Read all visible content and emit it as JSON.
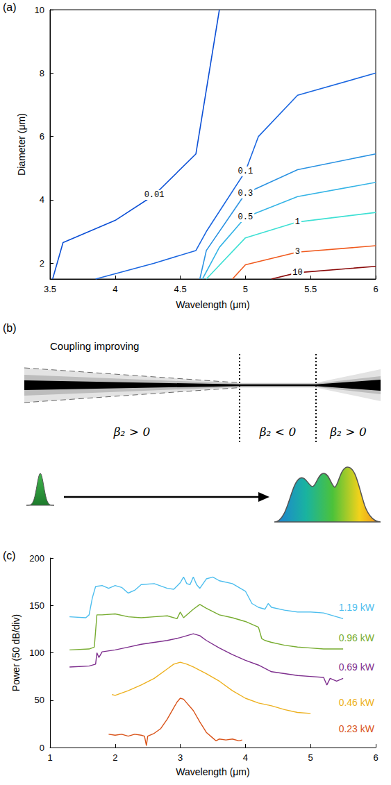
{
  "chart_data": [
    {
      "panel_label": "(a)",
      "type": "contour",
      "x_label": "Wavelength (μm)",
      "y_label": "Diameter (μm)",
      "xlim": [
        3.5,
        6
      ],
      "xticks": [
        3.5,
        4,
        4.5,
        5,
        5.5,
        6
      ],
      "ylim": [
        1.5,
        10
      ],
      "yticks": [
        2,
        4,
        6,
        8,
        10
      ],
      "grid": false,
      "series": [
        {
          "name": "0.01",
          "color": "#0b4fd6",
          "points": [
            [
              3.52,
              1.5
            ],
            [
              3.6,
              2.65
            ],
            [
              4.0,
              3.35
            ],
            [
              4.3,
              4.15
            ],
            [
              4.62,
              5.45
            ],
            [
              4.8,
              10
            ]
          ]
        },
        {
          "name": "0.1",
          "color": "#1a66e0",
          "points": [
            [
              3.85,
              1.5
            ],
            [
              4.3,
              2.0
            ],
            [
              4.62,
              2.4
            ],
            [
              4.7,
              3.0
            ],
            [
              5.0,
              4.9
            ],
            [
              5.1,
              6.0
            ],
            [
              5.4,
              7.3
            ],
            [
              6.0,
              8.0
            ]
          ]
        },
        {
          "name": "0.3",
          "color": "#2a92e2",
          "points": [
            [
              4.65,
              1.5
            ],
            [
              4.7,
              2.4
            ],
            [
              5.0,
              4.2
            ],
            [
              5.4,
              4.95
            ],
            [
              6.0,
              5.45
            ]
          ]
        },
        {
          "name": "0.5",
          "color": "#35b4e6",
          "points": [
            [
              4.67,
              1.5
            ],
            [
              4.8,
              2.5
            ],
            [
              5.0,
              3.45
            ],
            [
              5.4,
              4.1
            ],
            [
              6.0,
              4.55
            ]
          ]
        },
        {
          "name": "1",
          "color": "#3ee0d4",
          "points": [
            [
              4.7,
              1.5
            ],
            [
              5.0,
              2.8
            ],
            [
              5.4,
              3.3
            ],
            [
              6.0,
              3.6
            ]
          ]
        },
        {
          "name": "3",
          "color": "#f05a1e",
          "points": [
            [
              4.9,
              1.5
            ],
            [
              5.0,
              1.95
            ],
            [
              5.4,
              2.35
            ],
            [
              6.0,
              2.55
            ]
          ]
        },
        {
          "name": "10",
          "color": "#8a0a0a",
          "points": [
            [
              5.2,
              1.5
            ],
            [
              5.4,
              1.7
            ],
            [
              6.0,
              1.9
            ]
          ]
        }
      ]
    },
    {
      "panel_label": "(c)",
      "type": "line",
      "x_label": "Wavelength (μm)",
      "y_label": "Power (50 dB/div)",
      "xlim": [
        1,
        6
      ],
      "xticks": [
        1,
        2,
        3,
        4,
        5,
        6
      ],
      "ylim": [
        0,
        200
      ],
      "yticks": [
        0,
        50,
        100,
        150,
        200
      ],
      "grid": false,
      "series": [
        {
          "name": "1.19 kW",
          "color": "#4DBEEE",
          "points": [
            [
              1.3,
              138
            ],
            [
              1.55,
              137
            ],
            [
              1.6,
              140
            ],
            [
              1.65,
              158
            ],
            [
              1.7,
              170
            ],
            [
              1.8,
              171
            ],
            [
              1.9,
              168
            ],
            [
              2.0,
              171
            ],
            [
              2.1,
              169
            ],
            [
              2.2,
              163
            ],
            [
              2.3,
              166
            ],
            [
              2.4,
              172
            ],
            [
              2.6,
              173
            ],
            [
              2.8,
              168
            ],
            [
              2.9,
              167
            ],
            [
              3.0,
              174
            ],
            [
              3.05,
              180
            ],
            [
              3.1,
              173
            ],
            [
              3.15,
              172
            ],
            [
              3.2,
              180
            ],
            [
              3.25,
              172
            ],
            [
              3.3,
              168
            ],
            [
              3.4,
              178
            ],
            [
              3.5,
              180
            ],
            [
              3.6,
              176
            ],
            [
              3.8,
              173
            ],
            [
              4.0,
              165
            ],
            [
              4.1,
              152
            ],
            [
              4.2,
              148
            ],
            [
              4.3,
              146
            ],
            [
              4.35,
              152
            ],
            [
              4.4,
              148
            ],
            [
              4.6,
              145
            ],
            [
              4.8,
              143
            ],
            [
              5.0,
              143
            ],
            [
              5.2,
              142
            ],
            [
              5.4,
              138
            ],
            [
              5.5,
              136
            ]
          ]
        },
        {
          "name": "0.96 kW",
          "color": "#77AC30",
          "points": [
            [
              1.3,
              103
            ],
            [
              1.6,
              104
            ],
            [
              1.68,
              106
            ],
            [
              1.72,
              140
            ],
            [
              1.8,
              140
            ],
            [
              2.0,
              141
            ],
            [
              2.2,
              138
            ],
            [
              2.4,
              137
            ],
            [
              2.6,
              138
            ],
            [
              2.8,
              139
            ],
            [
              2.95,
              136
            ],
            [
              3.0,
              143
            ],
            [
              3.05,
              137
            ],
            [
              3.2,
              146
            ],
            [
              3.3,
              151
            ],
            [
              3.4,
              147
            ],
            [
              3.6,
              140
            ],
            [
              3.8,
              137
            ],
            [
              4.0,
              133
            ],
            [
              4.2,
              127
            ],
            [
              4.25,
              115
            ],
            [
              4.3,
              113
            ],
            [
              4.4,
              111
            ],
            [
              4.6,
              108
            ],
            [
              4.8,
              106
            ],
            [
              5.0,
              105
            ],
            [
              5.2,
              104
            ],
            [
              5.5,
              104
            ]
          ]
        },
        {
          "name": "0.69 kW",
          "color": "#7E2F8E",
          "points": [
            [
              1.3,
              85
            ],
            [
              1.6,
              86
            ],
            [
              1.7,
              88
            ],
            [
              1.72,
              100
            ],
            [
              1.75,
              95
            ],
            [
              1.8,
              101
            ],
            [
              2.0,
              103
            ],
            [
              2.2,
              106
            ],
            [
              2.4,
              109
            ],
            [
              2.6,
              111
            ],
            [
              2.8,
              113
            ],
            [
              3.0,
              116
            ],
            [
              3.1,
              118
            ],
            [
              3.2,
              120
            ],
            [
              3.3,
              118
            ],
            [
              3.4,
              113
            ],
            [
              3.6,
              105
            ],
            [
              3.8,
              98
            ],
            [
              4.0,
              92
            ],
            [
              4.2,
              87
            ],
            [
              4.4,
              80
            ],
            [
              4.6,
              78
            ],
            [
              4.8,
              76
            ],
            [
              5.0,
              75
            ],
            [
              5.2,
              74
            ],
            [
              5.25,
              66
            ],
            [
              5.3,
              73
            ],
            [
              5.4,
              70
            ],
            [
              5.5,
              73
            ]
          ]
        },
        {
          "name": "0.46 kW",
          "color": "#EDB120",
          "points": [
            [
              1.95,
              56
            ],
            [
              2.0,
              55
            ],
            [
              2.2,
              60
            ],
            [
              2.4,
              66
            ],
            [
              2.6,
              73
            ],
            [
              2.8,
              83
            ],
            [
              2.9,
              88
            ],
            [
              3.0,
              90
            ],
            [
              3.1,
              88
            ],
            [
              3.2,
              85
            ],
            [
              3.4,
              78
            ],
            [
              3.6,
              70
            ],
            [
              3.8,
              60
            ],
            [
              4.0,
              52
            ],
            [
              4.2,
              47
            ],
            [
              4.4,
              44
            ],
            [
              4.6,
              40
            ],
            [
              4.8,
              37
            ],
            [
              5.0,
              36
            ]
          ]
        },
        {
          "name": "0.23 kW",
          "color": "#D95319",
          "points": [
            [
              1.9,
              14
            ],
            [
              2.0,
              13
            ],
            [
              2.1,
              14
            ],
            [
              2.2,
              12
            ],
            [
              2.3,
              14
            ],
            [
              2.4,
              13
            ],
            [
              2.45,
              12
            ],
            [
              2.48,
              2
            ],
            [
              2.5,
              12
            ],
            [
              2.6,
              15
            ],
            [
              2.7,
              20
            ],
            [
              2.8,
              30
            ],
            [
              2.9,
              42
            ],
            [
              2.95,
              48
            ],
            [
              3.0,
              52
            ],
            [
              3.05,
              51
            ],
            [
              3.1,
              47
            ],
            [
              3.2,
              39
            ],
            [
              3.3,
              27
            ],
            [
              3.4,
              16
            ],
            [
              3.5,
              10
            ],
            [
              3.55,
              7
            ],
            [
              3.6,
              9
            ],
            [
              3.7,
              8
            ],
            [
              3.8,
              9
            ],
            [
              3.9,
              7
            ],
            [
              3.95,
              8
            ]
          ]
        }
      ]
    }
  ],
  "diagram": {
    "panel_label": "(b)",
    "annotation": "Coupling improving",
    "regions": [
      "β₂ > 0",
      "β₂ < 0",
      "β₂ > 0"
    ]
  }
}
